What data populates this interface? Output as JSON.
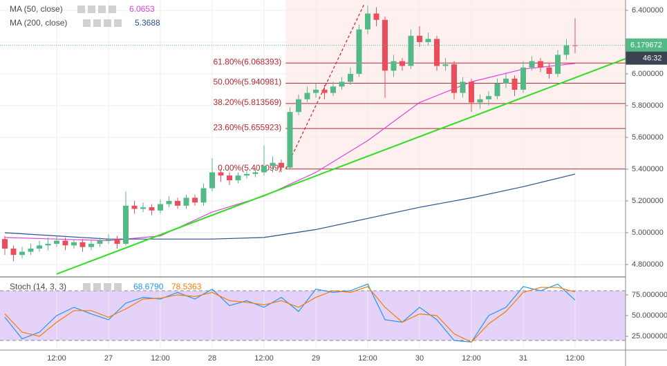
{
  "chart_data": [
    {
      "type": "candlestick",
      "x": [
        0,
        2,
        4,
        6,
        8,
        10,
        12,
        14,
        16,
        18,
        20,
        22,
        24,
        26,
        28,
        30,
        32,
        34,
        36,
        38,
        40,
        42,
        44,
        46,
        48,
        50,
        52,
        54,
        56,
        58,
        60,
        62,
        64,
        66,
        68,
        70,
        72,
        74,
        76,
        78,
        80,
        82,
        84,
        86,
        88,
        90,
        92,
        94,
        96,
        98,
        100,
        102,
        104,
        106,
        108,
        110,
        112,
        114,
        116,
        118,
        120,
        122,
        124,
        126,
        128,
        130,
        132
      ],
      "open": [
        4.96,
        4.9,
        4.86,
        4.88,
        4.9,
        4.92,
        4.93,
        4.95,
        4.92,
        4.94,
        4.91,
        4.93,
        4.95,
        4.96,
        4.93,
        5.17,
        5.15,
        5.16,
        5.14,
        5.18,
        5.2,
        5.17,
        5.22,
        5.19,
        5.28,
        5.38,
        5.36,
        5.33,
        5.36,
        5.37,
        5.38,
        5.42,
        5.44,
        5.41,
        5.76,
        5.84,
        5.88,
        5.9,
        5.88,
        5.92,
        5.95,
        6.0,
        6.28,
        6.38,
        6.34,
        6.02,
        6.08,
        6.05,
        6.24,
        6.2,
        6.22,
        6.05,
        6.06,
        5.88,
        5.95,
        5.82,
        5.84,
        5.86,
        5.94,
        5.97,
        5.9,
        6.04,
        6.08,
        6.04,
        6.0,
        6.12,
        6.18
      ],
      "high": [
        4.98,
        4.92,
        4.91,
        4.93,
        4.95,
        4.97,
        4.98,
        4.97,
        4.96,
        4.96,
        4.95,
        4.97,
        4.99,
        4.98,
        5.26,
        5.2,
        5.19,
        5.18,
        5.21,
        5.23,
        5.22,
        5.24,
        5.24,
        5.31,
        5.47,
        5.4,
        5.38,
        5.38,
        5.39,
        5.4,
        5.55,
        5.48,
        5.46,
        5.79,
        5.87,
        5.92,
        5.94,
        5.93,
        5.95,
        5.98,
        6.04,
        6.31,
        6.43,
        6.42,
        6.36,
        6.12,
        6.1,
        6.28,
        6.3,
        6.26,
        6.24,
        6.1,
        6.08,
        5.98,
        5.97,
        5.87,
        5.89,
        5.97,
        6.0,
        5.99,
        6.08,
        6.11,
        6.1,
        6.07,
        6.15,
        6.22,
        6.35
      ],
      "low": [
        4.86,
        4.82,
        4.84,
        4.86,
        4.88,
        4.89,
        4.91,
        4.89,
        4.9,
        4.88,
        4.89,
        4.91,
        4.93,
        4.9,
        4.92,
        5.12,
        5.13,
        5.11,
        5.12,
        5.16,
        5.15,
        5.15,
        5.17,
        5.17,
        5.26,
        5.32,
        5.3,
        5.31,
        5.34,
        5.35,
        5.36,
        5.38,
        5.38,
        5.4,
        5.74,
        5.82,
        5.85,
        5.84,
        5.86,
        5.9,
        5.93,
        5.98,
        6.25,
        6.3,
        5.85,
        5.98,
        6.02,
        6.03,
        6.17,
        6.18,
        6.02,
        6.02,
        5.84,
        5.85,
        5.76,
        5.78,
        5.8,
        5.84,
        5.91,
        5.86,
        5.88,
        6.02,
        6.01,
        5.97,
        5.98,
        6.09,
        6.13
      ],
      "close": [
        4.9,
        4.86,
        4.88,
        4.9,
        4.92,
        4.93,
        4.95,
        4.92,
        4.94,
        4.91,
        4.93,
        4.95,
        4.96,
        4.93,
        5.17,
        5.15,
        5.16,
        5.14,
        5.18,
        5.2,
        5.17,
        5.22,
        5.19,
        5.28,
        5.38,
        5.36,
        5.33,
        5.36,
        5.37,
        5.38,
        5.42,
        5.44,
        5.41,
        5.76,
        5.84,
        5.88,
        5.9,
        5.88,
        5.92,
        5.95,
        6.0,
        6.28,
        6.38,
        6.34,
        6.02,
        6.08,
        6.05,
        6.24,
        6.2,
        6.22,
        6.05,
        6.06,
        5.88,
        5.95,
        5.82,
        5.84,
        5.86,
        5.94,
        5.97,
        5.9,
        6.04,
        6.08,
        6.04,
        6.0,
        6.12,
        6.18,
        6.179672
      ],
      "up_color": "#53b987",
      "down_color": "#eb4d5c",
      "last_price_label": "6.179672",
      "countdown": "46:32",
      "series": [
        {
          "name": "MA (50, close)",
          "value_label": "6.0653",
          "color": "#e040e0",
          "x": [
            0,
            12,
            24,
            36,
            48,
            60,
            72,
            84,
            96,
            108,
            120,
            132
          ],
          "values": [
            4.97,
            4.96,
            4.95,
            4.98,
            5.13,
            5.23,
            5.38,
            5.58,
            5.82,
            5.95,
            6.03,
            6.0653
          ]
        },
        {
          "name": "MA (200, close)",
          "value_label": "5.3688",
          "color": "#2a4f8f",
          "x": [
            0,
            12,
            24,
            36,
            48,
            60,
            72,
            84,
            96,
            108,
            120,
            132
          ],
          "values": [
            5.0,
            4.98,
            4.96,
            4.96,
            4.96,
            4.97,
            5.02,
            5.09,
            5.16,
            5.22,
            5.29,
            5.3688
          ]
        }
      ],
      "fib_start": 65,
      "fib_levels": [
        {
          "value": 6.068393,
          "label": "61.80%(6.068393)"
        },
        {
          "value": 5.940981,
          "label": "50.00%(5.940981)"
        },
        {
          "value": 5.813569,
          "label": "38.20%(5.813569)"
        },
        {
          "value": 5.655923,
          "label": "23.60%(5.655923)"
        },
        {
          "value": 5.401099,
          "label": "0.00%(5.401099)"
        }
      ],
      "trendline": {
        "color": "#33dd22",
        "x": [
          12,
          143.7
        ],
        "values": [
          4.74,
          6.096
        ]
      },
      "projection": {
        "color": "#d03030",
        "x": [
          65,
          83.2
        ],
        "values": [
          5.401099,
          6.44
        ]
      },
      "xlim": [
        -1.12,
        143.68
      ],
      "xticks": [
        {
          "value": 12,
          "label": "12:00"
        },
        {
          "value": 24,
          "label": "27"
        },
        {
          "value": 36,
          "label": "12:00"
        },
        {
          "value": 48,
          "label": "28"
        },
        {
          "value": 60,
          "label": "12:00"
        },
        {
          "value": 72,
          "label": "29"
        },
        {
          "value": 84,
          "label": "12:00"
        },
        {
          "value": 96,
          "label": "30"
        },
        {
          "value": 108,
          "label": "12:00"
        },
        {
          "value": 120,
          "label": "31"
        },
        {
          "value": 132,
          "label": "12:00"
        }
      ],
      "ylim": [
        4.726,
        6.465
      ],
      "yticks": [
        {
          "value": 4.8,
          "label": "4.800000"
        },
        {
          "value": 5.0,
          "label": "5.000000"
        },
        {
          "value": 5.2,
          "label": "5.200000"
        },
        {
          "value": 5.4,
          "label": "5.400000"
        },
        {
          "value": 5.6,
          "label": "5.600000"
        },
        {
          "value": 5.8,
          "label": "5.800000"
        },
        {
          "value": 6.0,
          "label": "6.000000"
        },
        {
          "value": 6.2,
          "label": "6.200000"
        },
        {
          "value": 6.4,
          "label": "6.400000"
        }
      ],
      "grid": true
    },
    {
      "type": "line",
      "title": "Stoch (14, 3, 3)",
      "x": [
        0,
        4,
        8,
        12,
        16,
        20,
        24,
        28,
        32,
        36,
        40,
        44,
        48,
        52,
        56,
        60,
        64,
        68,
        72,
        76,
        80,
        84,
        88,
        92,
        96,
        100,
        104,
        108,
        112,
        116,
        120,
        124,
        128,
        132
      ],
      "series": [
        {
          "value_label": "68.6790",
          "color": "#2196f3",
          "values": [
            48,
            22,
            30,
            50,
            60,
            52,
            45,
            65,
            72,
            70,
            78,
            70,
            82,
            62,
            68,
            60,
            72,
            55,
            82,
            78,
            80,
            88,
            45,
            42,
            60,
            45,
            20,
            18,
            50,
            60,
            85,
            80,
            88,
            68.679
          ]
        },
        {
          "value_label": "78.5363",
          "color": "#f57c00",
          "values": [
            52,
            30,
            25,
            42,
            56,
            56,
            48,
            58,
            70,
            71,
            75,
            73,
            78,
            68,
            66,
            63,
            68,
            60,
            72,
            80,
            78,
            85,
            60,
            42,
            52,
            50,
            28,
            18,
            40,
            55,
            78,
            84,
            84,
            78.5363
          ]
        }
      ],
      "bands": [
        20,
        80
      ],
      "ylim": [
        10,
        95.8
      ],
      "yticks": [
        {
          "value": 25,
          "label": "25.000000"
        },
        {
          "value": 50,
          "label": "50.000000"
        },
        {
          "value": 75,
          "label": "75.000000"
        }
      ]
    }
  ]
}
